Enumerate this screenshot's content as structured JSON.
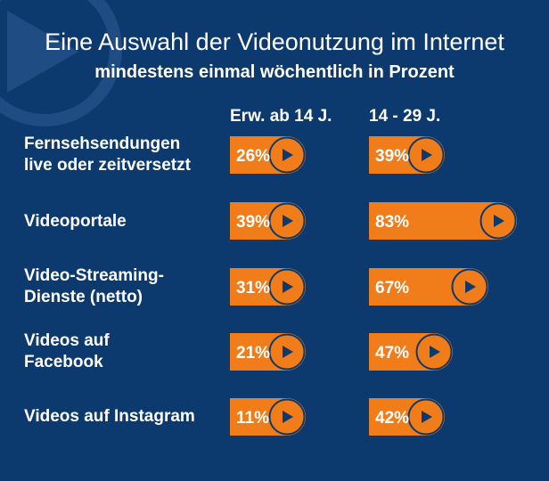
{
  "header": {
    "title": "Eine Auswahl der Videonutzung im Internet",
    "subtitle": "mindestens einmal wöchentlich in Prozent"
  },
  "colors": {
    "background": "#0d3a6e",
    "bar": "#f07d1a",
    "icon": "#0d3a6e",
    "text": "#ffffff"
  },
  "icons": {
    "decoration": "play-icon",
    "bar_end": "play-icon"
  },
  "chart_data": {
    "type": "bar",
    "orientation": "horizontal",
    "title": "Eine Auswahl der Videonutzung im Internet",
    "subtitle": "mindestens einmal wöchentlich in Prozent",
    "categories": [
      "Fernsehsendungen\nlive oder zeitversetzt",
      "Videoportale",
      "Video-Streaming-\nDienste (netto)",
      "Videos auf\nFacebook",
      "Videos auf Instagram"
    ],
    "series": [
      {
        "name": "Erw. ab 14 J.",
        "values": [
          26,
          39,
          31,
          21,
          11
        ]
      },
      {
        "name": "14 - 29 J.",
        "values": [
          39,
          83,
          67,
          47,
          42
        ]
      }
    ],
    "value_labels": [
      [
        "26%",
        "39%",
        "31%",
        "21%",
        "11%"
      ],
      [
        "39%",
        "83%",
        "67%",
        "47%",
        "42%"
      ]
    ],
    "unit": "%",
    "xlim": [
      0,
      100
    ],
    "grid": false,
    "legend": "column headers above bars"
  }
}
